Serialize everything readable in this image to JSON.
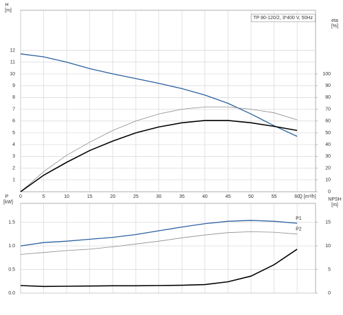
{
  "chart_data": [
    {
      "type": "line",
      "title": "TP 80-120/2, 3*400 V, 50Hz",
      "xlabel": "Q [m³/h]",
      "ylabel": "H",
      "yunit": "[m]",
      "y2label": "eta",
      "y2unit": "[%]",
      "x": [
        0,
        5,
        10,
        15,
        20,
        25,
        30,
        35,
        40,
        45,
        50,
        55,
        60
      ],
      "xlim": [
        0,
        64
      ],
      "xticks": [
        0,
        5,
        10,
        15,
        20,
        25,
        30,
        35,
        40,
        45,
        50,
        55,
        60
      ],
      "ylim": [
        0,
        15.4
      ],
      "yticks": [
        1,
        2,
        3,
        4,
        5,
        6,
        7,
        8,
        9,
        10,
        11,
        12
      ],
      "y2lim": [
        0,
        154
      ],
      "y2ticks": [
        0,
        10,
        20,
        30,
        40,
        50,
        60,
        70,
        80,
        90,
        100
      ],
      "grid": true,
      "series": [
        {
          "color": "#2a5fa0",
          "values": [
            11.7,
            11.45,
            11.0,
            10.45,
            10.0,
            9.6,
            9.2,
            8.75,
            8.2,
            7.5,
            6.6,
            5.6,
            4.7
          ]
        },
        {
          "color": "#8a8a8a",
          "axis": "y2",
          "values": [
            0,
            17,
            31,
            42,
            52,
            60,
            66,
            70,
            72,
            72,
            70,
            67,
            61
          ]
        },
        {
          "color": "#000000",
          "axis": "y2",
          "values": [
            0,
            14,
            25,
            35,
            43,
            50,
            55,
            58.5,
            60.5,
            60.5,
            58.5,
            55.5,
            52
          ]
        }
      ]
    },
    {
      "type": "line",
      "ylabel": "P",
      "yunit": "[kW]",
      "y2label": "NPSH",
      "y2unit": "[m]",
      "x": [
        0,
        5,
        10,
        15,
        20,
        25,
        30,
        35,
        40,
        45,
        50,
        55,
        60
      ],
      "xlim": [
        0,
        64
      ],
      "ylim": [
        0,
        1.9
      ],
      "yticks": [
        {
          "value": 0,
          "label": "0.0"
        },
        {
          "value": 0.5,
          "label": "0.5"
        },
        {
          "value": 1.0,
          "label": "1.0"
        },
        {
          "value": 1.5,
          "label": "1.5"
        }
      ],
      "y2lim": [
        0,
        19
      ],
      "y2ticks": [
        0,
        5,
        10,
        15
      ],
      "grid": true,
      "series": [
        {
          "name": "P1",
          "color": "#2a5fa0",
          "values": [
            1.0,
            1.07,
            1.1,
            1.14,
            1.18,
            1.24,
            1.32,
            1.4,
            1.47,
            1.52,
            1.54,
            1.52,
            1.48
          ]
        },
        {
          "name": "P2",
          "color": "#8a8a8a",
          "values": [
            0.82,
            0.86,
            0.9,
            0.93,
            0.98,
            1.04,
            1.1,
            1.17,
            1.23,
            1.28,
            1.3,
            1.29,
            1.25
          ]
        },
        {
          "color": "#000000",
          "axis": "y2",
          "values": [
            1.6,
            1.4,
            1.45,
            1.5,
            1.55,
            1.55,
            1.6,
            1.65,
            1.8,
            2.4,
            3.6,
            6.0,
            9.3
          ]
        }
      ]
    }
  ]
}
